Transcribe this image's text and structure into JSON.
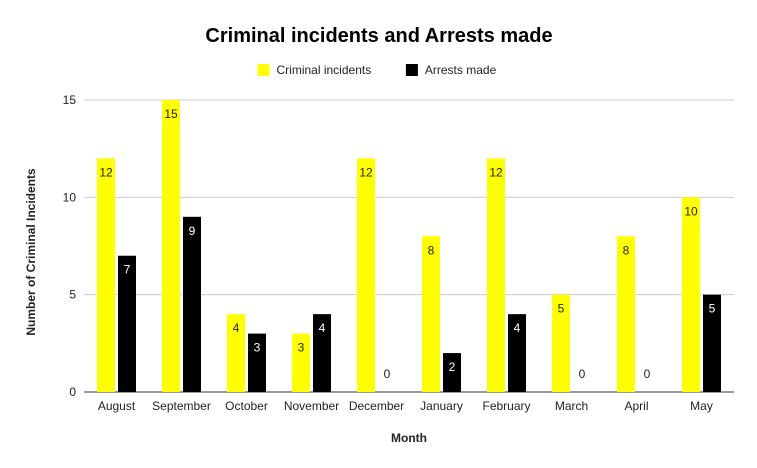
{
  "chart_data": {
    "type": "bar",
    "title": "Criminal incidents and Arrests made",
    "xlabel": "Month",
    "ylabel": "Number of Criminal Incidents",
    "ylim": [
      0,
      15
    ],
    "yticks": [
      0,
      5,
      10,
      15
    ],
    "grid": true,
    "legend_position": "top",
    "categories": [
      "August",
      "September",
      "October",
      "November",
      "December",
      "January",
      "February",
      "March",
      "April",
      "May"
    ],
    "series": [
      {
        "name": "Criminal incidents",
        "color": "#ffff00",
        "label_color": "#222222",
        "values": [
          12,
          15,
          4,
          3,
          12,
          8,
          12,
          5,
          8,
          10
        ]
      },
      {
        "name": "Arrests made",
        "color": "#000000",
        "label_color": "#ffffff",
        "values": [
          7,
          9,
          3,
          4,
          0,
          2,
          4,
          0,
          0,
          5
        ]
      }
    ]
  }
}
